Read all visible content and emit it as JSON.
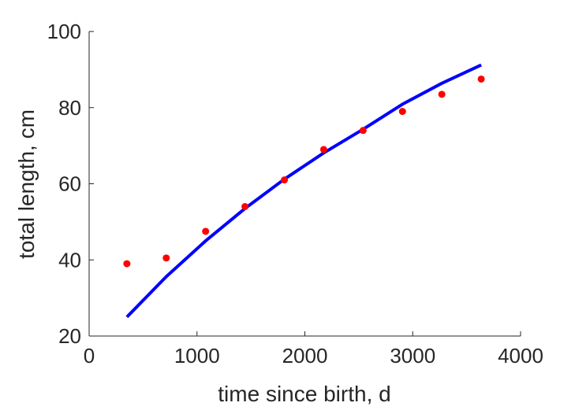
{
  "chart_data": {
    "type": "scatter",
    "xlabel": "time since birth, d",
    "ylabel": "total length, cm",
    "xlim": [
      0,
      4000
    ],
    "ylim": [
      20,
      100
    ],
    "x_ticks": [
      "0",
      "1000",
      "2000",
      "3000",
      "4000"
    ],
    "y_ticks": [
      "20",
      "40",
      "60",
      "80",
      "100"
    ],
    "x_tick_values": [
      0,
      1000,
      2000,
      3000,
      4000
    ],
    "y_tick_values": [
      20,
      40,
      60,
      80,
      100
    ],
    "grid": false,
    "series": [
      {
        "type": "scatter",
        "color": "#ff0000",
        "points": [
          [
            350,
            39.0
          ],
          [
            715,
            40.5
          ],
          [
            1080,
            47.5
          ],
          [
            1445,
            54.0
          ],
          [
            1810,
            61.0
          ],
          [
            2175,
            69.0
          ],
          [
            2540,
            74.0
          ],
          [
            2905,
            79.0
          ],
          [
            3270,
            83.5
          ],
          [
            3635,
            87.5
          ]
        ]
      },
      {
        "type": "line",
        "color": "#0000ff",
        "points": [
          [
            350,
            25.0
          ],
          [
            715,
            35.6
          ],
          [
            1080,
            45.0
          ],
          [
            1445,
            53.5
          ],
          [
            1810,
            61.2
          ],
          [
            2175,
            68.1
          ],
          [
            2540,
            74.3
          ],
          [
            2905,
            80.9
          ],
          [
            3270,
            86.4
          ],
          [
            3635,
            91.2
          ]
        ]
      }
    ]
  }
}
